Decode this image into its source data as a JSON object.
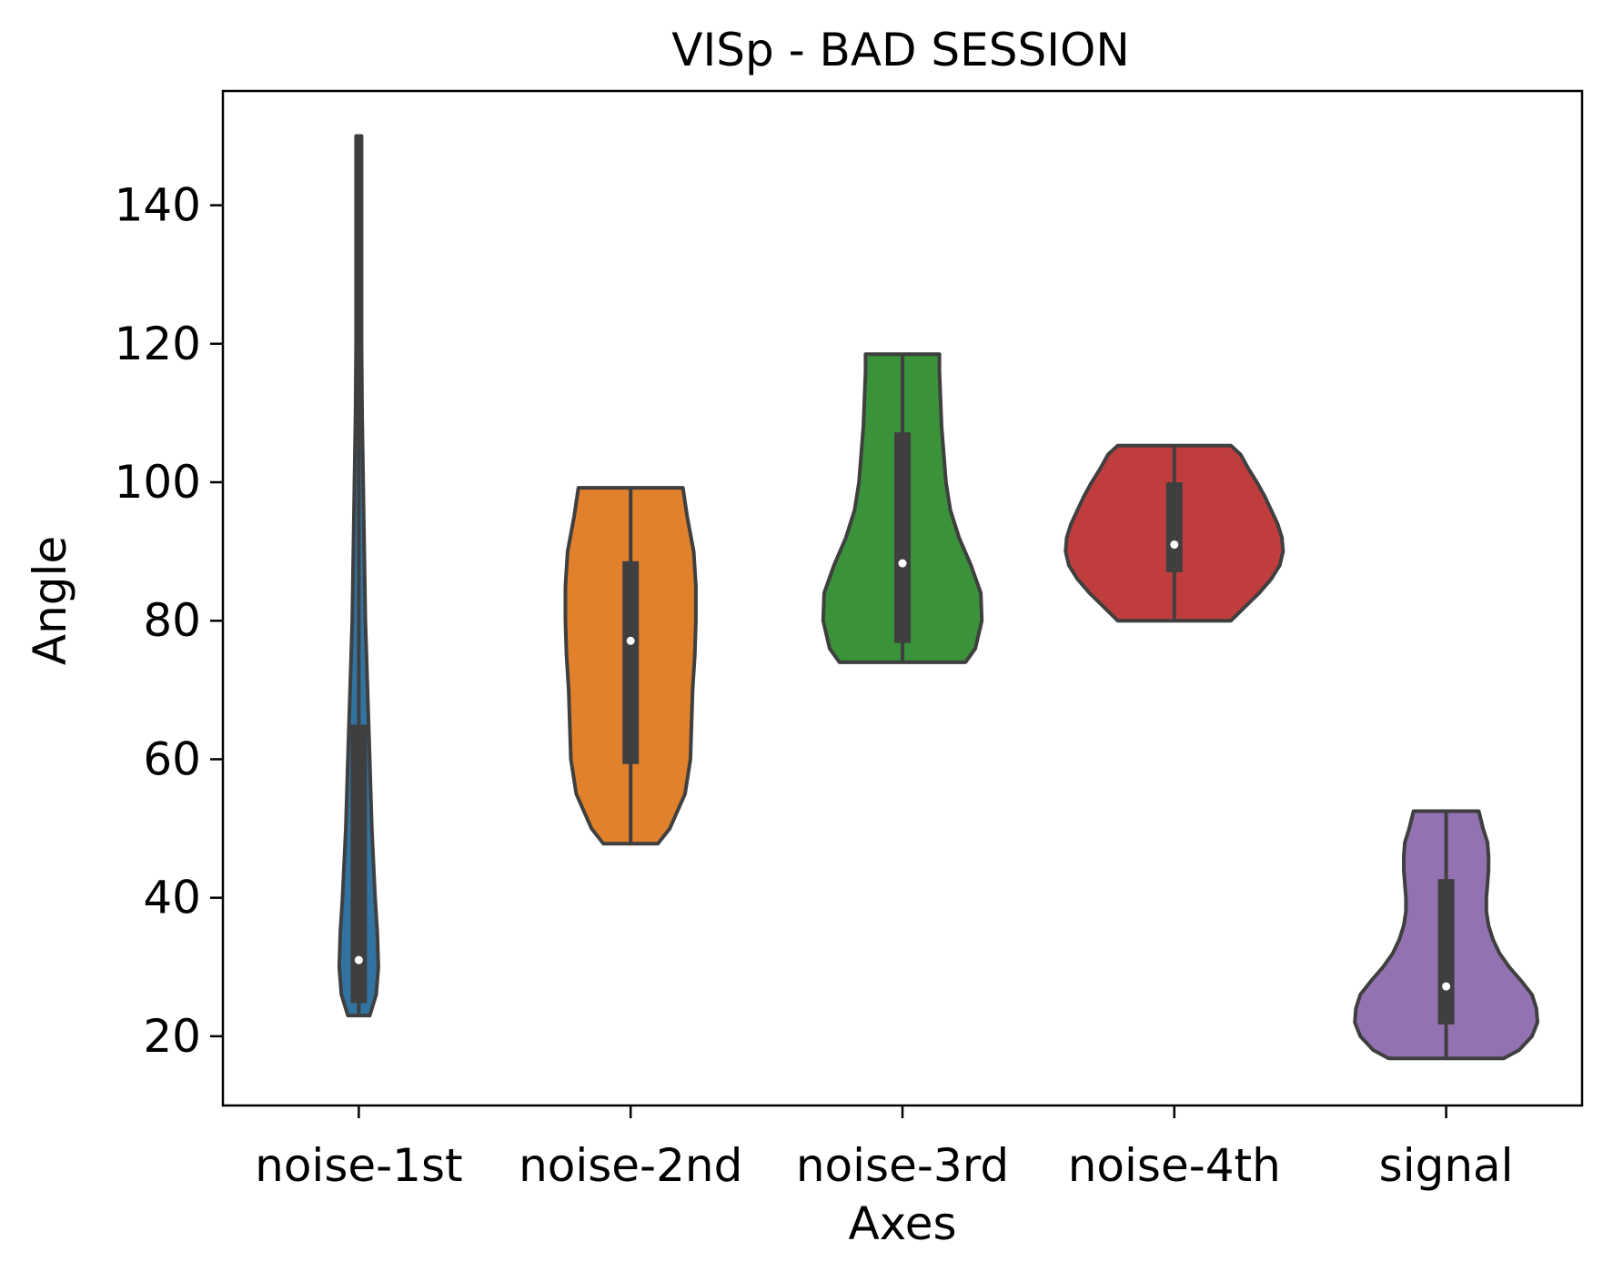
{
  "chart_data": {
    "type": "violin",
    "title": "VISp - BAD SESSION",
    "xlabel": "Axes",
    "ylabel": "Angle",
    "ylim": [
      10,
      156.5
    ],
    "yticks": [
      20,
      40,
      60,
      80,
      100,
      120,
      140
    ],
    "grid": false,
    "categories": [
      "noise-1st",
      "noise-2nd",
      "noise-3rd",
      "noise-4th",
      "signal"
    ],
    "series": [
      {
        "category": "noise-1st",
        "color": "#3274a1",
        "min": 23,
        "q1": 24.8,
        "median": 31,
        "q3": 65,
        "max": 150,
        "density": [
          [
            23,
            0.1
          ],
          [
            26,
            0.16
          ],
          [
            30,
            0.18
          ],
          [
            35,
            0.17
          ],
          [
            40,
            0.15
          ],
          [
            50,
            0.12
          ],
          [
            60,
            0.1
          ],
          [
            70,
            0.08
          ],
          [
            80,
            0.06
          ],
          [
            90,
            0.05
          ],
          [
            100,
            0.04
          ],
          [
            110,
            0.03
          ],
          [
            120,
            0.025
          ],
          [
            130,
            0.025
          ],
          [
            140,
            0.025
          ],
          [
            150,
            0.025
          ]
        ]
      },
      {
        "category": "noise-2nd",
        "color": "#e1812c",
        "min": 47.8,
        "q1": 59.3,
        "median": 77.1,
        "q3": 88.6,
        "max": 99.2,
        "density": [
          [
            47.8,
            0.25
          ],
          [
            50,
            0.36
          ],
          [
            55,
            0.5
          ],
          [
            60,
            0.55
          ],
          [
            65,
            0.56
          ],
          [
            70,
            0.57
          ],
          [
            75,
            0.59
          ],
          [
            80,
            0.6
          ],
          [
            85,
            0.6
          ],
          [
            90,
            0.58
          ],
          [
            95,
            0.52
          ],
          [
            99.2,
            0.48
          ]
        ]
      },
      {
        "category": "noise-3rd",
        "color": "#3a923a",
        "min": 74,
        "q1": 76.8,
        "median": 88.3,
        "q3": 107.2,
        "max": 118.5,
        "density": [
          [
            74,
            0.58
          ],
          [
            76,
            0.67
          ],
          [
            80,
            0.73
          ],
          [
            84,
            0.72
          ],
          [
            88,
            0.63
          ],
          [
            92,
            0.52
          ],
          [
            96,
            0.44
          ],
          [
            100,
            0.4
          ],
          [
            104,
            0.38
          ],
          [
            108,
            0.36
          ],
          [
            112,
            0.35
          ],
          [
            116,
            0.34
          ],
          [
            118.5,
            0.34
          ]
        ]
      },
      {
        "category": "noise-4th",
        "color": "#c03d3e",
        "min": 80,
        "q1": 87,
        "median": 91,
        "q3": 100,
        "max": 105.3,
        "density": [
          [
            80,
            0.52
          ],
          [
            82,
            0.65
          ],
          [
            84,
            0.78
          ],
          [
            86,
            0.89
          ],
          [
            88,
            0.97
          ],
          [
            90,
            1.0
          ],
          [
            92,
            0.99
          ],
          [
            94,
            0.95
          ],
          [
            96,
            0.89
          ],
          [
            98,
            0.83
          ],
          [
            100,
            0.76
          ],
          [
            102,
            0.68
          ],
          [
            104,
            0.61
          ],
          [
            105.3,
            0.52
          ]
        ]
      },
      {
        "category": "signal",
        "color": "#9372b2",
        "min": 16.8,
        "q1": 21.7,
        "median": 27.2,
        "q3": 42.7,
        "max": 52.5,
        "density": [
          [
            16.8,
            0.53
          ],
          [
            18,
            0.67
          ],
          [
            20,
            0.79
          ],
          [
            22,
            0.84
          ],
          [
            24,
            0.83
          ],
          [
            26,
            0.79
          ],
          [
            28,
            0.69
          ],
          [
            30,
            0.58
          ],
          [
            32,
            0.49
          ],
          [
            34,
            0.43
          ],
          [
            36,
            0.39
          ],
          [
            38,
            0.37
          ],
          [
            40,
            0.37
          ],
          [
            42,
            0.38
          ],
          [
            44,
            0.39
          ],
          [
            46,
            0.39
          ],
          [
            48,
            0.38
          ],
          [
            50,
            0.34
          ],
          [
            52.5,
            0.3
          ]
        ]
      }
    ]
  }
}
